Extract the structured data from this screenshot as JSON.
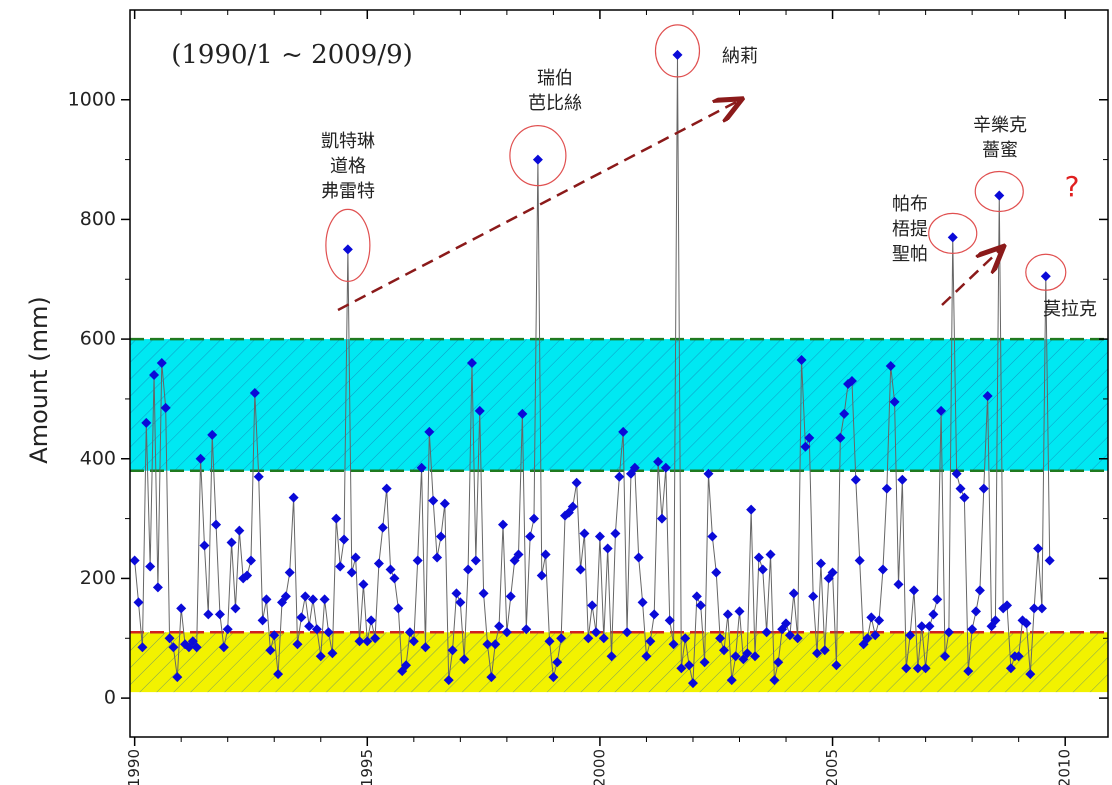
{
  "chart_data": {
    "type": "line",
    "title": "(1990/1 ~ 2009/9)",
    "y_label": "Amount (mm)",
    "xlim": [
      1989.9,
      2010.92
    ],
    "xticks": [
      1990,
      1995,
      2000,
      2005,
      2010
    ],
    "ylim": [
      -65,
      1150
    ],
    "yticks": [
      0,
      200,
      400,
      600,
      800,
      1000
    ],
    "bands": [
      {
        "from": 380,
        "to": 600,
        "color": "#00e8f2"
      },
      {
        "from": 10,
        "to": 110,
        "color": "#f2f200"
      }
    ],
    "hlines": [
      {
        "value": 600,
        "color": "#1f7a1f"
      },
      {
        "value": 380,
        "color": "#1f7a1f"
      },
      {
        "value": 110,
        "color": "#d02020"
      }
    ],
    "x": [
      1990,
      1990.083,
      1990.167,
      1990.25,
      1990.333,
      1990.417,
      1990.5,
      1990.583,
      1990.667,
      1990.75,
      1990.833,
      1990.917,
      1991,
      1991.083,
      1991.167,
      1991.25,
      1991.333,
      1991.417,
      1991.5,
      1991.583,
      1991.667,
      1991.75,
      1991.833,
      1991.917,
      1992,
      1992.083,
      1992.167,
      1992.25,
      1992.333,
      1992.417,
      1992.5,
      1992.583,
      1992.667,
      1992.75,
      1992.833,
      1992.917,
      1993,
      1993.083,
      1993.167,
      1993.25,
      1993.333,
      1993.417,
      1993.5,
      1993.583,
      1993.667,
      1993.75,
      1993.833,
      1993.917,
      1994,
      1994.083,
      1994.167,
      1994.25,
      1994.333,
      1994.417,
      1994.5,
      1994.583,
      1994.667,
      1994.75,
      1994.833,
      1994.917,
      1995,
      1995.083,
      1995.167,
      1995.25,
      1995.333,
      1995.417,
      1995.5,
      1995.583,
      1995.667,
      1995.75,
      1995.833,
      1995.917,
      1996,
      1996.083,
      1996.167,
      1996.25,
      1996.333,
      1996.417,
      1996.5,
      1996.583,
      1996.667,
      1996.75,
      1996.833,
      1996.917,
      1997,
      1997.083,
      1997.167,
      1997.25,
      1997.333,
      1997.417,
      1997.5,
      1997.583,
      1997.667,
      1997.75,
      1997.833,
      1997.917,
      1998,
      1998.083,
      1998.167,
      1998.25,
      1998.333,
      1998.417,
      1998.5,
      1998.583,
      1998.667,
      1998.75,
      1998.833,
      1998.917,
      1999,
      1999.083,
      1999.167,
      1999.25,
      1999.333,
      1999.417,
      1999.5,
      1999.583,
      1999.667,
      1999.75,
      1999.833,
      1999.917,
      2000,
      2000.083,
      2000.167,
      2000.25,
      2000.333,
      2000.417,
      2000.5,
      2000.583,
      2000.667,
      2000.75,
      2000.833,
      2000.917,
      2001,
      2001.083,
      2001.167,
      2001.25,
      2001.333,
      2001.417,
      2001.5,
      2001.583,
      2001.667,
      2001.75,
      2001.833,
      2001.917,
      2002,
      2002.083,
      2002.167,
      2002.25,
      2002.333,
      2002.417,
      2002.5,
      2002.583,
      2002.667,
      2002.75,
      2002.833,
      2002.917,
      2003,
      2003.083,
      2003.167,
      2003.25,
      2003.333,
      2003.417,
      2003.5,
      2003.583,
      2003.667,
      2003.75,
      2003.833,
      2003.917,
      2004,
      2004.083,
      2004.167,
      2004.25,
      2004.333,
      2004.417,
      2004.5,
      2004.583,
      2004.667,
      2004.75,
      2004.833,
      2004.917,
      2005,
      2005.083,
      2005.167,
      2005.25,
      2005.333,
      2005.417,
      2005.5,
      2005.583,
      2005.667,
      2005.75,
      2005.833,
      2005.917,
      2006,
      2006.083,
      2006.167,
      2006.25,
      2006.333,
      2006.417,
      2006.5,
      2006.583,
      2006.667,
      2006.75,
      2006.833,
      2006.917,
      2007,
      2007.083,
      2007.167,
      2007.25,
      2007.333,
      2007.417,
      2007.5,
      2007.583,
      2007.667,
      2007.75,
      2007.833,
      2007.917,
      2008,
      2008.083,
      2008.167,
      2008.25,
      2008.333,
      2008.417,
      2008.5,
      2008.583,
      2008.667,
      2008.75,
      2008.833,
      2008.917,
      2009,
      2009.083,
      2009.167,
      2009.25,
      2009.333,
      2009.417,
      2009.5,
      2009.583,
      2009.667
    ],
    "series": [
      {
        "color": "#0a0ad8",
        "line_color": "#666666",
        "values": [
          230,
          160,
          85,
          460,
          220,
          540,
          185,
          560,
          485,
          100,
          85,
          35,
          150,
          90,
          85,
          95,
          85,
          400,
          255,
          140,
          440,
          290,
          140,
          85,
          115,
          260,
          150,
          280,
          200,
          205,
          230,
          510,
          370,
          130,
          165,
          80,
          105,
          40,
          160,
          170,
          210,
          335,
          90,
          135,
          170,
          120,
          165,
          115,
          70,
          165,
          110,
          75,
          300,
          220,
          265,
          750,
          210,
          235,
          95,
          190,
          95,
          130,
          100,
          225,
          285,
          350,
          215,
          200,
          150,
          45,
          55,
          110,
          95,
          230,
          385,
          85,
          445,
          330,
          235,
          270,
          325,
          30,
          80,
          175,
          160,
          65,
          215,
          560,
          230,
          480,
          175,
          90,
          35,
          90,
          120,
          290,
          110,
          170,
          230,
          240,
          475,
          115,
          270,
          300,
          900,
          205,
          240,
          95,
          35,
          60,
          100,
          305,
          310,
          320,
          360,
          215,
          275,
          100,
          155,
          110,
          270,
          100,
          250,
          70,
          275,
          370,
          445,
          110,
          375,
          385,
          235,
          160,
          70,
          95,
          140,
          395,
          300,
          385,
          130,
          90,
          1075,
          50,
          100,
          55,
          25,
          170,
          155,
          60,
          375,
          270,
          210,
          100,
          80,
          140,
          30,
          70,
          145,
          65,
          75,
          315,
          70,
          235,
          215,
          110,
          240,
          30,
          60,
          115,
          125,
          105,
          175,
          100,
          565,
          420,
          435,
          170,
          75,
          225,
          80,
          200,
          210,
          55,
          435,
          475,
          525,
          530,
          365,
          230,
          90,
          100,
          135,
          105,
          130,
          215,
          350,
          555,
          495,
          190,
          365,
          50,
          105,
          180,
          50,
          120,
          50,
          120,
          140,
          165,
          480,
          70,
          110,
          770,
          375,
          350,
          335,
          45,
          115,
          145,
          180,
          350,
          505,
          120,
          130,
          840,
          150,
          155,
          50,
          70,
          70,
          130,
          125,
          40,
          150,
          250,
          150,
          705,
          230
        ]
      }
    ],
    "annotations": [
      {
        "lines": [
          "凱特琳",
          "道格",
          "弗雷特"
        ]
      },
      {
        "lines": [
          "瑞伯",
          "芭比絲"
        ]
      },
      {
        "lines": [
          "納莉"
        ]
      },
      {
        "lines": [
          "帕布",
          "梧提",
          "聖帕"
        ]
      },
      {
        "lines": [
          "辛樂克",
          "薔蜜"
        ]
      },
      {
        "lines": [
          "莫拉克"
        ]
      },
      {
        "lines": [
          "?"
        ]
      }
    ]
  }
}
